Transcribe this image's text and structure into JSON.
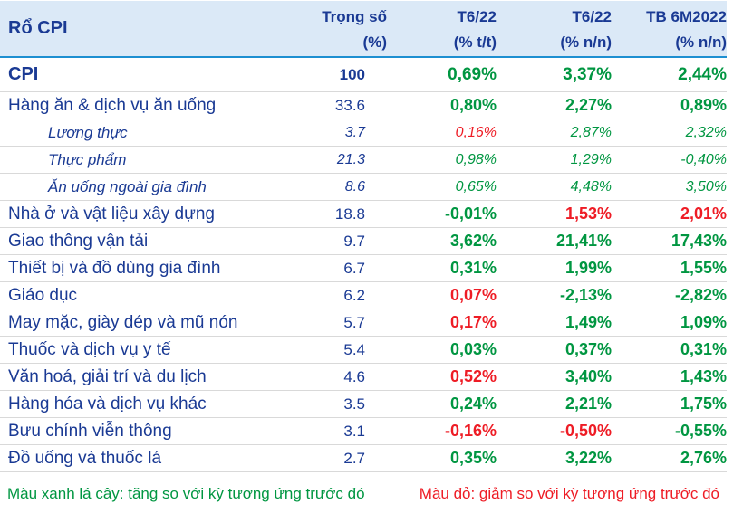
{
  "colors": {
    "navy": "#1a3a94",
    "green": "#009641",
    "red": "#ee1c25",
    "header_bg": "#dbe9f7",
    "header_line": "#1d8fd1",
    "divider": "#d9d9d9"
  },
  "header": {
    "basket_label": "Rổ CPI",
    "col_weight_line1": "Trọng số",
    "col_weight_line2": "(%)",
    "col_mom_line1": "T6/22",
    "col_mom_line2": "(% t/t)",
    "col_yoy_line1": "T6/22",
    "col_yoy_line2": "(% n/n)",
    "col_avg_line1": "TB 6M2022",
    "col_avg_line2": "(% n/n)"
  },
  "footer": {
    "green_note": "Màu xanh lá cây: tăng so với kỳ tương ứng trước đó",
    "red_note": "Màu đỏ: giảm so với kỳ tương ứng trước đó"
  },
  "chart_data": {
    "type": "table",
    "title": "Rổ CPI",
    "columns": [
      "Rổ CPI",
      "Trọng số (%)",
      "T6/22 (% t/t)",
      "T6/22 (% n/n)",
      "TB 6M2022 (% n/n)"
    ],
    "color_legend": {
      "green": "tăng so với kỳ tương ứng trước đó",
      "red": "giảm so với kỳ tương ứng trước đó"
    },
    "rows": [
      {
        "label": "CPI",
        "style": "total",
        "weight": "100",
        "v1": "0,69%",
        "v1c": "green",
        "v2": "3,37%",
        "v2c": "green",
        "v3": "2,44%",
        "v3c": "green"
      },
      {
        "label": "Hàng ăn & dịch vụ ăn uống",
        "style": "main",
        "weight": "33.6",
        "v1": "0,80%",
        "v1c": "green",
        "v2": "2,27%",
        "v2c": "green",
        "v3": "0,89%",
        "v3c": "green"
      },
      {
        "label": "Lương thực",
        "style": "sub",
        "weight": "3.7",
        "v1": "0,16%",
        "v1c": "red",
        "v2": "2,87%",
        "v2c": "green",
        "v3": "2,32%",
        "v3c": "green"
      },
      {
        "label": "Thực phẩm",
        "style": "sub",
        "weight": "21.3",
        "v1": "0,98%",
        "v1c": "green",
        "v2": "1,29%",
        "v2c": "green",
        "v3": "-0,40%",
        "v3c": "green"
      },
      {
        "label": "Ăn uống ngoài gia đình",
        "style": "sub",
        "weight": "8.6",
        "v1": "0,65%",
        "v1c": "green",
        "v2": "4,48%",
        "v2c": "green",
        "v3": "3,50%",
        "v3c": "green"
      },
      {
        "label": "Nhà ở và vật liệu xây dựng",
        "style": "main",
        "weight": "18.8",
        "v1": "-0,01%",
        "v1c": "green",
        "v2": "1,53%",
        "v2c": "red",
        "v3": "2,01%",
        "v3c": "red"
      },
      {
        "label": "Giao thông vận tải",
        "style": "main",
        "weight": "9.7",
        "v1": "3,62%",
        "v1c": "green",
        "v2": "21,41%",
        "v2c": "green",
        "v3": "17,43%",
        "v3c": "green"
      },
      {
        "label": "Thiết bị và đồ dùng gia đình",
        "style": "main",
        "weight": "6.7",
        "v1": "0,31%",
        "v1c": "green",
        "v2": "1,99%",
        "v2c": "green",
        "v3": "1,55%",
        "v3c": "green"
      },
      {
        "label": "Giáo dục",
        "style": "main",
        "weight": "6.2",
        "v1": "0,07%",
        "v1c": "red",
        "v2": "-2,13%",
        "v2c": "green",
        "v3": "-2,82%",
        "v3c": "green"
      },
      {
        "label": "May mặc, giày dép và mũ nón",
        "style": "main",
        "weight": "5.7",
        "v1": "0,17%",
        "v1c": "red",
        "v2": "1,49%",
        "v2c": "green",
        "v3": "1,09%",
        "v3c": "green"
      },
      {
        "label": "Thuốc và dịch vụ y tế",
        "style": "main",
        "weight": "5.4",
        "v1": "0,03%",
        "v1c": "green",
        "v2": "0,37%",
        "v2c": "green",
        "v3": "0,31%",
        "v3c": "green"
      },
      {
        "label": "Văn hoá, giải trí và du lịch",
        "style": "main",
        "weight": "4.6",
        "v1": "0,52%",
        "v1c": "red",
        "v2": "3,40%",
        "v2c": "green",
        "v3": "1,43%",
        "v3c": "green"
      },
      {
        "label": "Hàng hóa và dịch vụ khác",
        "style": "main",
        "weight": "3.5",
        "v1": "0,24%",
        "v1c": "green",
        "v2": "2,21%",
        "v2c": "green",
        "v3": "1,75%",
        "v3c": "green"
      },
      {
        "label": "Bưu chính viễn thông",
        "style": "main",
        "weight": "3.1",
        "v1": "-0,16%",
        "v1c": "red",
        "v2": "-0,50%",
        "v2c": "red",
        "v3": "-0,55%",
        "v3c": "green"
      },
      {
        "label": "Đồ uống và thuốc lá",
        "style": "main",
        "weight": "2.7",
        "v1": "0,35%",
        "v1c": "green",
        "v2": "3,22%",
        "v2c": "green",
        "v3": "2,76%",
        "v3c": "green"
      }
    ]
  }
}
